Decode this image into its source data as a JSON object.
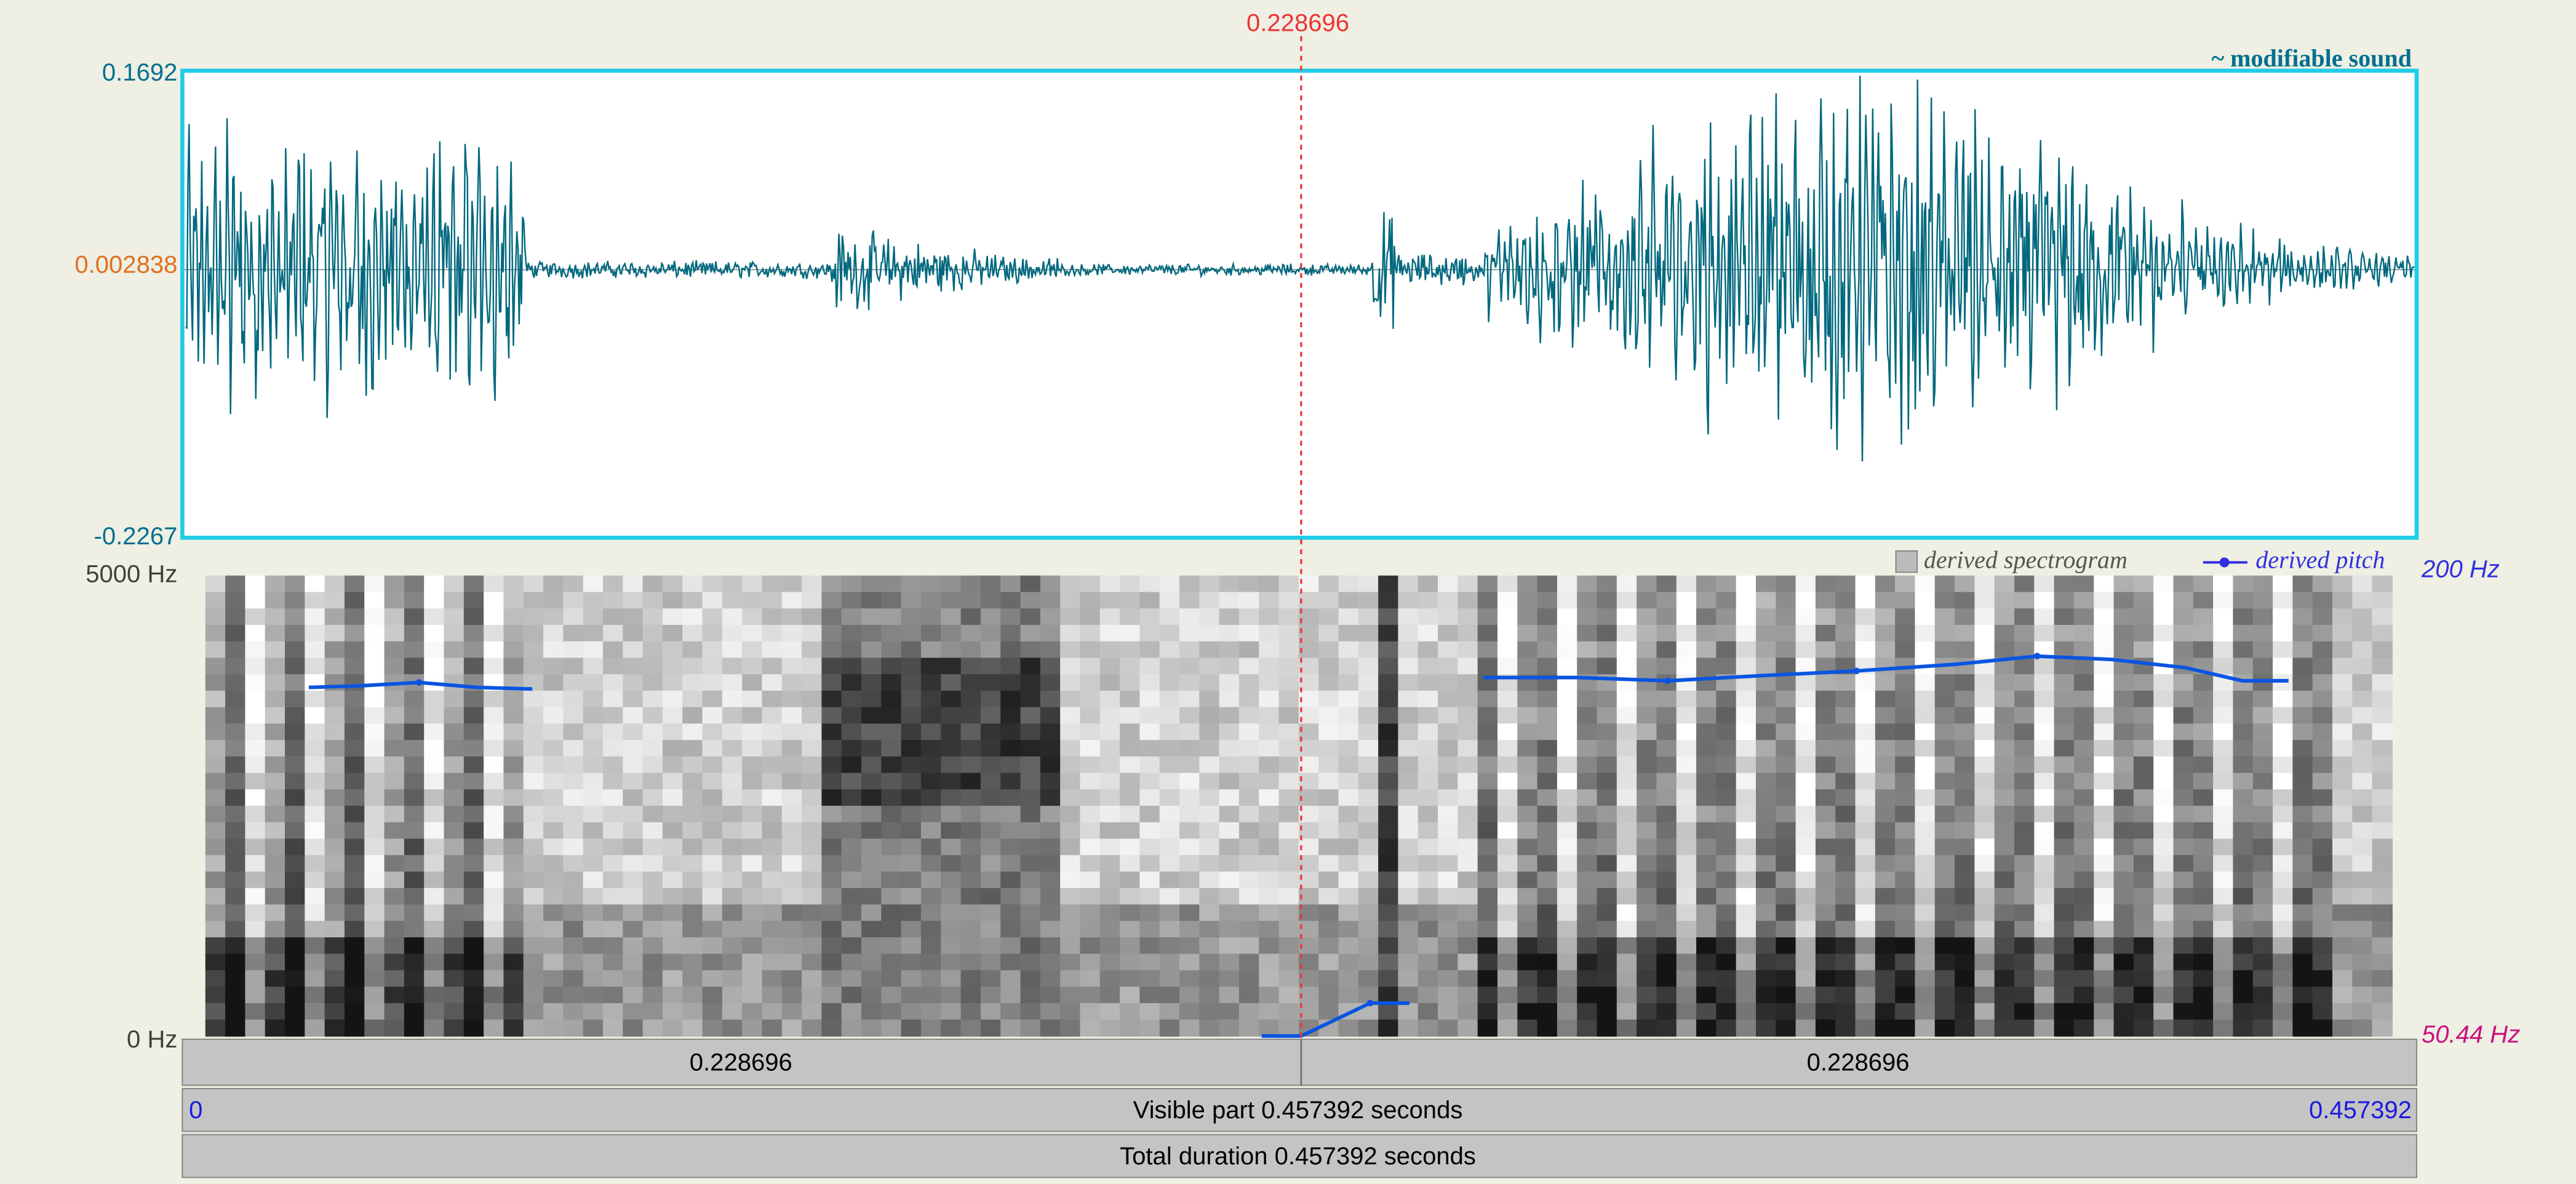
{
  "cursor_time": "0.228696",
  "waveform": {
    "max_label": "0.1692",
    "mid_label": "0.002838",
    "min_label": "-0.2267",
    "title": "~ modifiable sound"
  },
  "spectrogram": {
    "max_label": "5000 Hz",
    "min_label": "0 Hz",
    "legend_spectrogram": "derived spectrogram",
    "legend_pitch": "derived pitch",
    "pitch_max_label": "200 Hz",
    "pitch_min_label": "50.44 Hz"
  },
  "time_bars": {
    "left_segment": "0.228696",
    "right_segment": "0.228696",
    "visible_start": "0",
    "visible_label": "Visible part 0.457392 seconds",
    "visible_end": "0.457392",
    "total_label": "Total duration 0.457392 seconds"
  }
}
